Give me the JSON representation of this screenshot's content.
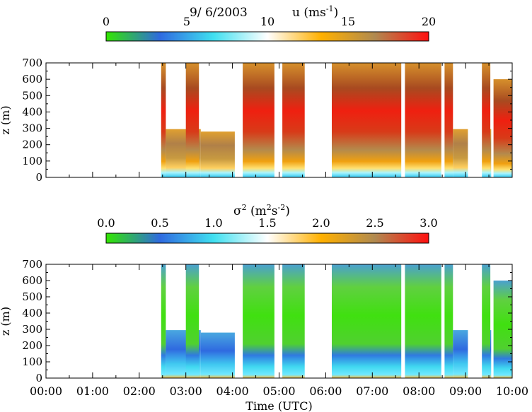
{
  "header": {
    "date": "9/ 6/2003",
    "panel1_quantity": "u (ms",
    "panel1_unit_exp": "-1",
    "panel1_unit_close": ")",
    "panel2_quantity": "σ",
    "panel2_sup": "2",
    "panel2_unit_open": " (m",
    "panel2_unit_sup1": "2",
    "panel2_unit_mid": "s",
    "panel2_unit_sup2": "-2",
    "panel2_unit_close": ")"
  },
  "chart_data": [
    {
      "type": "heatmap",
      "quantity": "u",
      "unit": "ms-1",
      "colorbar": {
        "range": [
          0,
          20
        ],
        "ticks": [
          "0",
          "5",
          "10",
          "15",
          "20"
        ],
        "colors": [
          "#32e600",
          "#2f6ae0",
          "#40e0f0",
          "#ffffff",
          "#ffb000",
          "#b08a50",
          "#ff1010"
        ]
      },
      "ylabel": "z (m)",
      "yticks": [
        "0",
        "100",
        "200",
        "300",
        "400",
        "500",
        "600",
        "700"
      ],
      "ylim": [
        0,
        700
      ],
      "xlim": [
        0,
        10
      ],
      "xlabel": "",
      "segments": [
        {
          "start": 2.47,
          "end": 2.57,
          "top": 700
        },
        {
          "start": 2.57,
          "end": 3.32,
          "top": 295
        },
        {
          "start": 3.0,
          "end": 3.28,
          "top": 700
        },
        {
          "start": 3.32,
          "end": 4.05,
          "top": 280
        },
        {
          "start": 4.22,
          "end": 4.9,
          "top": 700
        },
        {
          "start": 5.07,
          "end": 5.55,
          "top": 700
        },
        {
          "start": 6.13,
          "end": 7.62,
          "top": 700
        },
        {
          "start": 7.7,
          "end": 8.48,
          "top": 700
        },
        {
          "start": 8.55,
          "end": 8.73,
          "top": 700
        },
        {
          "start": 8.73,
          "end": 9.05,
          "top": 295
        },
        {
          "start": 9.35,
          "end": 9.53,
          "top": 700
        },
        {
          "start": 9.53,
          "end": 9.55,
          "top": 295
        },
        {
          "start": 9.6,
          "end": 10.0,
          "top": 600
        }
      ]
    },
    {
      "type": "heatmap",
      "quantity": "σ2",
      "unit": "m2s-2",
      "colorbar": {
        "range": [
          0.0,
          3.0
        ],
        "ticks": [
          "0.0",
          "0.5",
          "1.0",
          "1.5",
          "2.0",
          "2.5",
          "3.0"
        ],
        "colors": [
          "#32e600",
          "#2f6ae0",
          "#40e0f0",
          "#ffffff",
          "#ffb000",
          "#b08a50",
          "#ff1010"
        ]
      },
      "ylabel": "z (m)",
      "yticks": [
        "0",
        "100",
        "200",
        "300",
        "400",
        "500",
        "600",
        "700"
      ],
      "ylim": [
        0,
        700
      ],
      "xlim": [
        0,
        10
      ],
      "xlabel": "Time (UTC)",
      "xticks": [
        "00:00",
        "01:00",
        "02:00",
        "03:00",
        "04:00",
        "05:00",
        "06:00",
        "07:00",
        "08:00",
        "09:00",
        "10:00"
      ],
      "segments": [
        {
          "start": 2.47,
          "end": 2.57,
          "top": 700
        },
        {
          "start": 2.57,
          "end": 3.32,
          "top": 295
        },
        {
          "start": 3.0,
          "end": 3.28,
          "top": 700
        },
        {
          "start": 3.32,
          "end": 4.05,
          "top": 280
        },
        {
          "start": 4.22,
          "end": 4.9,
          "top": 700
        },
        {
          "start": 5.07,
          "end": 5.55,
          "top": 700
        },
        {
          "start": 6.13,
          "end": 7.62,
          "top": 700
        },
        {
          "start": 7.7,
          "end": 8.48,
          "top": 700
        },
        {
          "start": 8.55,
          "end": 8.73,
          "top": 700
        },
        {
          "start": 8.73,
          "end": 9.05,
          "top": 295
        },
        {
          "start": 9.35,
          "end": 9.53,
          "top": 700
        },
        {
          "start": 9.53,
          "end": 9.55,
          "top": 295
        },
        {
          "start": 9.6,
          "end": 10.0,
          "top": 600
        }
      ]
    }
  ]
}
